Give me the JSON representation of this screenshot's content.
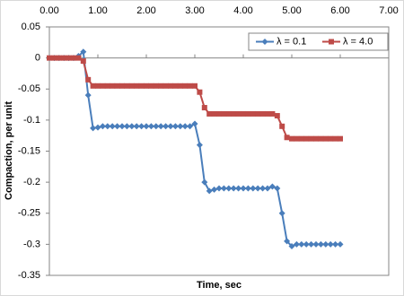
{
  "chart_data": {
    "type": "line",
    "x_label": "Time, sec",
    "y_label": "Compaction, per unit",
    "x": [
      0,
      0.1,
      0.2,
      0.3,
      0.4,
      0.5,
      0.6,
      0.7,
      0.8,
      0.9,
      1.0,
      1.1,
      1.2,
      1.3,
      1.4,
      1.5,
      1.6,
      1.7,
      1.8,
      1.9,
      2.0,
      2.1,
      2.2,
      2.3,
      2.4,
      2.5,
      2.6,
      2.7,
      2.8,
      2.9,
      3.0,
      3.1,
      3.2,
      3.3,
      3.4,
      3.5,
      3.6,
      3.7,
      3.8,
      3.9,
      4.0,
      4.1,
      4.2,
      4.3,
      4.4,
      4.5,
      4.6,
      4.7,
      4.8,
      4.9,
      5.0,
      5.1,
      5.2,
      5.3,
      5.4,
      5.5,
      5.6,
      5.7,
      5.8,
      5.9,
      6.0
    ],
    "series": [
      {
        "name": "λ = 0.1",
        "color": "#4a7ebb",
        "marker": "diamond",
        "values": [
          0,
          0,
          0,
          0,
          0,
          0,
          0.003,
          0.01,
          -0.06,
          -0.113,
          -0.112,
          -0.11,
          -0.11,
          -0.11,
          -0.11,
          -0.11,
          -0.11,
          -0.11,
          -0.11,
          -0.11,
          -0.11,
          -0.11,
          -0.11,
          -0.11,
          -0.11,
          -0.11,
          -0.11,
          -0.11,
          -0.11,
          -0.11,
          -0.106,
          -0.14,
          -0.2,
          -0.214,
          -0.212,
          -0.21,
          -0.21,
          -0.21,
          -0.21,
          -0.21,
          -0.21,
          -0.21,
          -0.21,
          -0.21,
          -0.21,
          -0.21,
          -0.207,
          -0.21,
          -0.25,
          -0.295,
          -0.303,
          -0.3,
          -0.3,
          -0.3,
          -0.3,
          -0.3,
          -0.3,
          -0.3,
          -0.3,
          -0.3,
          -0.3
        ]
      },
      {
        "name": "λ = 4.0",
        "color": "#be4b48",
        "marker": "square",
        "values": [
          0,
          0,
          0,
          0,
          0,
          0,
          0,
          -0.005,
          -0.035,
          -0.045,
          -0.045,
          -0.045,
          -0.045,
          -0.045,
          -0.045,
          -0.045,
          -0.045,
          -0.045,
          -0.045,
          -0.045,
          -0.045,
          -0.045,
          -0.045,
          -0.045,
          -0.045,
          -0.045,
          -0.045,
          -0.045,
          -0.045,
          -0.045,
          -0.045,
          -0.055,
          -0.08,
          -0.09,
          -0.09,
          -0.09,
          -0.09,
          -0.09,
          -0.09,
          -0.09,
          -0.09,
          -0.09,
          -0.09,
          -0.09,
          -0.09,
          -0.09,
          -0.09,
          -0.093,
          -0.11,
          -0.128,
          -0.13,
          -0.13,
          -0.13,
          -0.13,
          -0.13,
          -0.13,
          -0.13,
          -0.13,
          -0.13,
          -0.13,
          -0.13
        ]
      }
    ],
    "xlim": [
      0,
      7
    ],
    "xticks": [
      {
        "value": 0,
        "label": "0.00"
      },
      {
        "value": 1,
        "label": "1.00"
      },
      {
        "value": 2,
        "label": "2.00"
      },
      {
        "value": 3,
        "label": "3.00"
      },
      {
        "value": 4,
        "label": "4.00"
      },
      {
        "value": 5,
        "label": "5.00"
      },
      {
        "value": 6,
        "label": "6.00"
      },
      {
        "value": 7,
        "label": "7.00"
      }
    ],
    "ylim": [
      -0.35,
      0.05
    ],
    "yticks": [
      0.05,
      0,
      -0.05,
      -0.1,
      -0.15,
      -0.2,
      -0.25,
      -0.3,
      -0.35
    ],
    "x_axis_position": "top",
    "grid": false,
    "legend": "upper right"
  }
}
